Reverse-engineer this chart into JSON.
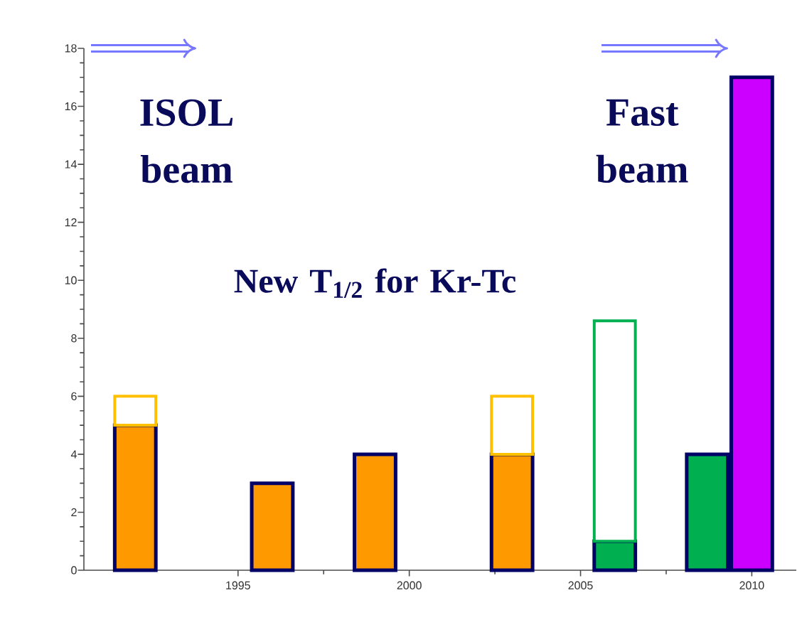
{
  "chart_data": {
    "type": "bar",
    "stacked": true,
    "x": [
      1992,
      1996,
      1999,
      2003,
      2006,
      2008.7,
      2010
    ],
    "series": [
      {
        "values": [
          5,
          3,
          4,
          4,
          1,
          4,
          17
        ],
        "colors": [
          "#ff9900",
          "#ff9900",
          "#ff9900",
          "#ff9900",
          "#00b050",
          "#00b050",
          "#cc00ff"
        ]
      },
      {
        "values": [
          1,
          null,
          null,
          2,
          7.6,
          null,
          null
        ],
        "colors": [
          "#ffc000",
          null,
          null,
          "#ffc000",
          "#00b050",
          null,
          null
        ]
      }
    ],
    "xlim": [
      1990.5,
      2011.3
    ],
    "xticks": [
      1995,
      2000,
      2005,
      2010
    ],
    "ylim": [
      0,
      18
    ],
    "yticks": [
      0,
      2,
      4,
      6,
      8,
      10,
      12,
      14,
      16,
      18
    ],
    "grid": false,
    "annotations": [
      "ISOL beam",
      "Fast beam",
      "New T$_{1/2}$ for Kr-Tc"
    ]
  }
}
